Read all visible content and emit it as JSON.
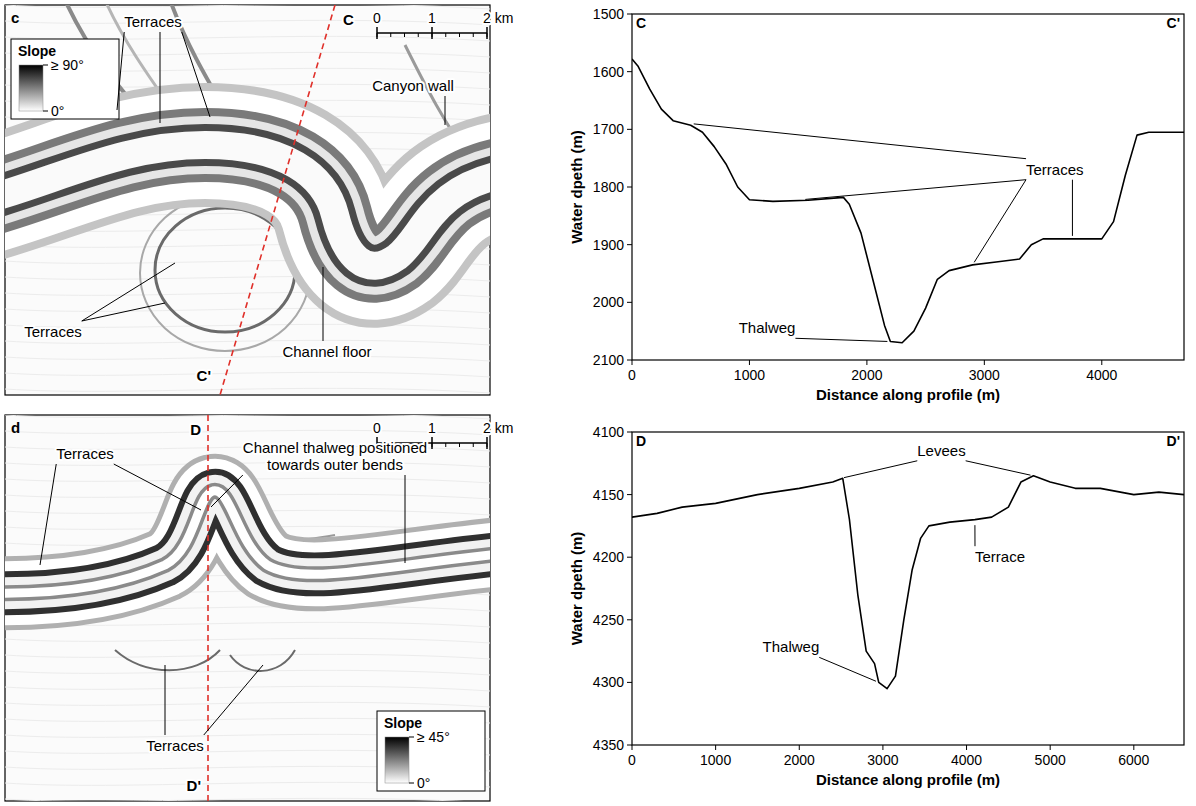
{
  "chart_data": [
    {
      "type": "line",
      "corner_labels": [
        "C",
        "C'"
      ],
      "x_label": "Distance along profile (m)",
      "y_label": "Water dpeth (m)",
      "xlim": [
        0,
        4700
      ],
      "xticks": [
        0,
        1000,
        2000,
        3000,
        4000
      ],
      "ylim": [
        2100,
        1500
      ],
      "yticks": [
        1500,
        1600,
        1700,
        1800,
        1900,
        2000,
        2100
      ],
      "color": "#000000",
      "x": [
        0,
        50,
        150,
        250,
        350,
        500,
        600,
        700,
        800,
        900,
        1000,
        1200,
        1500,
        1800,
        1850,
        1950,
        2050,
        2150,
        2200,
        2300,
        2400,
        2500,
        2600,
        2700,
        2900,
        3100,
        3300,
        3400,
        3500,
        3800,
        4000,
        4100,
        4200,
        4300,
        4400,
        4700
      ],
      "values": [
        1578,
        1590,
        1630,
        1665,
        1685,
        1693,
        1705,
        1730,
        1760,
        1800,
        1822,
        1825,
        1823,
        1818,
        1830,
        1880,
        1960,
        2040,
        2068,
        2070,
        2050,
        2010,
        1960,
        1945,
        1935,
        1930,
        1925,
        1900,
        1890,
        1890,
        1890,
        1860,
        1780,
        1710,
        1705,
        1705
      ],
      "annotations": [
        {
          "text": "Terraces",
          "x": 3600,
          "y": 1770,
          "targets": [
            [
              500,
              1690
            ],
            [
              1450,
              1822
            ],
            [
              2900,
              1935
            ],
            [
              3750,
              1890
            ]
          ]
        },
        {
          "text": "Thalweg",
          "x": 1150,
          "y": 2045,
          "targets": [
            [
              2200,
              2068
            ]
          ]
        }
      ]
    },
    {
      "type": "line",
      "corner_labels": [
        "D",
        "D'"
      ],
      "x_label": "Distance along profile (m)",
      "y_label": "Water dpeth (m)",
      "xlim": [
        0,
        6600
      ],
      "xticks": [
        0,
        1000,
        2000,
        3000,
        4000,
        5000,
        6000
      ],
      "ylim": [
        4350,
        4100
      ],
      "yticks": [
        4100,
        4150,
        4200,
        4250,
        4300,
        4350
      ],
      "color": "#000000",
      "x": [
        0,
        300,
        600,
        1000,
        1500,
        2000,
        2400,
        2520,
        2600,
        2700,
        2800,
        2900,
        2950,
        3050,
        3150,
        3250,
        3350,
        3450,
        3550,
        3800,
        4100,
        4300,
        4500,
        4650,
        4800,
        5000,
        5300,
        5600,
        6000,
        6300,
        6600
      ],
      "values": [
        4168,
        4165,
        4160,
        4157,
        4150,
        4145,
        4140,
        4137,
        4170,
        4230,
        4275,
        4285,
        4300,
        4305,
        4295,
        4250,
        4210,
        4185,
        4175,
        4172,
        4170,
        4168,
        4160,
        4140,
        4135,
        4140,
        4145,
        4145,
        4150,
        4148,
        4150
      ],
      "annotations": [
        {
          "text": "Levees",
          "x": 3700,
          "y": 4115,
          "targets": [
            [
              2500,
              4137
            ],
            [
              4800,
              4135
            ]
          ]
        },
        {
          "text": "Terrace",
          "x": 4400,
          "y": 4200,
          "targets": [
            [
              4100,
              4172
            ]
          ]
        },
        {
          "text": "Thalweg",
          "x": 1900,
          "y": 4272,
          "targets": [
            [
              2950,
              4300
            ]
          ]
        }
      ]
    }
  ],
  "maps": [
    {
      "letter": "c",
      "profile_ends": [
        "C",
        "C'"
      ],
      "scale_bar": [
        {
          "value": 0,
          "label": "0"
        },
        {
          "value": 1,
          "label": "1"
        },
        {
          "value": 2,
          "label": "2 km"
        }
      ],
      "slope_legend": {
        "title": "Slope",
        "ticks": [
          {
            "value": 90,
            "label": "≥ 90°"
          },
          {
            "value": 0,
            "label": "0°"
          }
        ]
      },
      "labels": [
        "Terraces",
        "Canyon wall",
        "Terraces",
        "Channel floor"
      ]
    },
    {
      "letter": "d",
      "profile_ends": [
        "D",
        "D'"
      ],
      "scale_bar": [
        {
          "value": 0,
          "label": "0"
        },
        {
          "value": 1,
          "label": "1"
        },
        {
          "value": 2,
          "label": "2 km"
        }
      ],
      "slope_legend": {
        "title": "Slope",
        "ticks": [
          {
            "value": 45,
            "label": "≥ 45°"
          },
          {
            "value": 0,
            "label": "0°"
          }
        ]
      },
      "labels": [
        "Terraces",
        "Channel thalweg positioned towards outer bends",
        "Terraces"
      ]
    }
  ]
}
